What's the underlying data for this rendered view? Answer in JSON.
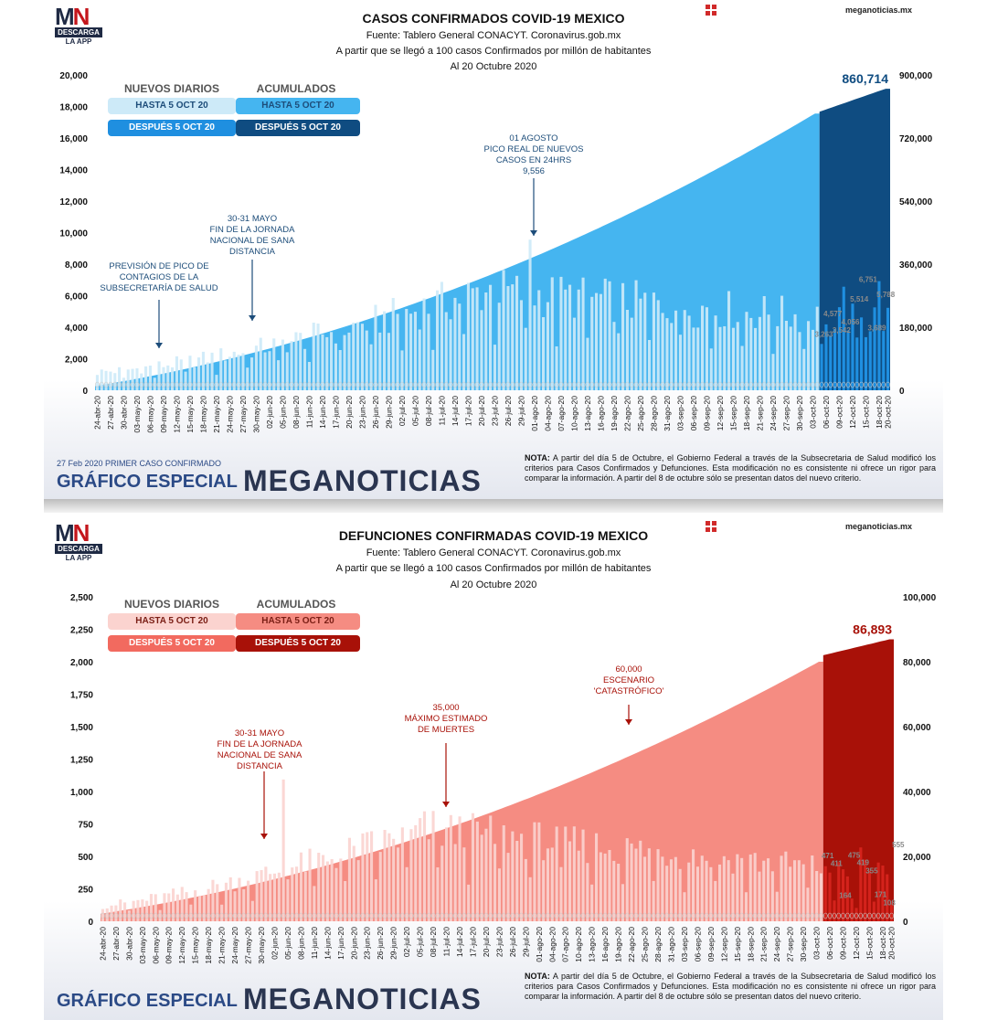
{
  "chart_data": [
    {
      "type": "bar",
      "title": "CASOS CONFIRMADOS COVID-19 MEXICO",
      "subtitle_lines": [
        "Fuente: Tablero General CONACYT. Coronavirus.gob.mx",
        "A partir que se llegó a 100 casos Confirmados por millón de habitantes",
        "Al 20 Octubre 2020"
      ],
      "x_start": "2020-04-24",
      "x_end": "2020-10-20",
      "x_tick_labels": [
        "24-abr-20",
        "27-abr-20",
        "30-abr-20",
        "03-may-20",
        "06-may-20",
        "09-may-20",
        "12-may-20",
        "15-may-20",
        "18-may-20",
        "21-may-20",
        "24-may-20",
        "27-may-20",
        "30-may-20",
        "02-jun-20",
        "05-jun-20",
        "08-jun-20",
        "11-jun-20",
        "14-jun-20",
        "17-jun-20",
        "20-jun-20",
        "23-jun-20",
        "26-jun-20",
        "29-jun-20",
        "02-jul-20",
        "05-jul-20",
        "08-jul-20",
        "11-jul-20",
        "14-jul-20",
        "17-jul-20",
        "20-jul-20",
        "23-jul-20",
        "26-jul-20",
        "29-jul-20",
        "01-ago-20",
        "04-ago-20",
        "07-ago-20",
        "10-ago-20",
        "13-ago-20",
        "16-ago-20",
        "19-ago-20",
        "22-ago-20",
        "25-ago-20",
        "28-ago-20",
        "31-ago-20",
        "03-sep-20",
        "06-sep-20",
        "09-sep-20",
        "12-sep-20",
        "15-sep-20",
        "18-sep-20",
        "21-sep-20",
        "24-sep-20",
        "27-sep-20",
        "30-sep-20",
        "03-oct-20",
        "06-oct-20",
        "09-oct-20",
        "12-oct-20",
        "15-oct-20",
        "18-oct-20",
        "20-oct-20"
      ],
      "y_left_ticks": [
        "20,000",
        "18,000",
        "16,000",
        "14,000",
        "12,000",
        "10,000",
        "8,000",
        "6,000",
        "4,000",
        "2,000",
        "0"
      ],
      "y_right_ticks": [
        "900,000",
        "720,000",
        "540,000",
        "360,000",
        "180,000",
        "0"
      ],
      "ylim_left": [
        0,
        20000
      ],
      "ylim_right": [
        0,
        900000
      ],
      "series": [
        {
          "name": "NUEVOS DIARIOS HASTA 5 OCT 20",
          "color": "#cdeaf8",
          "approx_range": [
            800,
            9556
          ]
        },
        {
          "name": "NUEVOS DIARIOS DESPUÉS 5 OCT 20",
          "color": "#1f8fe0",
          "values_labeled": [
            3263,
            4577,
            3542,
            4056,
            5514,
            6751,
            3689,
            5788
          ]
        },
        {
          "name": "ACUMULADOS HASTA 5 OCT 20",
          "color": "#45b5f0",
          "start": 12000,
          "end": 790000
        },
        {
          "name": "ACUMULADOS DESPUÉS 5 OCT 20",
          "color": "#0f4c81",
          "start": 795000,
          "end": 860714
        }
      ],
      "total_label": "860,714",
      "bar_labels": [
        "3,263",
        "4,577",
        "3,542",
        "4,056",
        "5,514",
        "6,751",
        "3,689",
        "5,788"
      ],
      "legend": {
        "left_header": "NUEVOS DIARIOS",
        "right_header": "ACUMULADOS",
        "before": "HASTA 5 OCT 20",
        "after": "DESPUÉS 5 OCT 20"
      },
      "annotations": {
        "prevision": [
          "PREVISIÓN DE PICO DE",
          "CONTAGIOS DE LA",
          "SUBSECRETARÍA DE SALUD"
        ],
        "jornada": [
          "30-31 MAYO",
          "FIN DE LA JORNADA",
          "NACIONAL DE SANA",
          "DISTANCIA"
        ],
        "agosto": [
          "01 AGOSTO",
          "PICO REAL DE NUEVOS",
          "CASOS EN 24HRS",
          "9,556"
        ]
      },
      "first_case": "27 Feb 2020 PRIMER CASO CONFIRMADO"
    },
    {
      "type": "bar",
      "title": "DEFUNCIONES CONFIRMADAS COVID-19 MEXICO",
      "subtitle_lines": [
        "Fuente: Tablero General CONACYT. Coronavirus.gob.mx",
        "A partir que se llegó a 100 casos Confirmados por millón de habitantes",
        "Al 20 Octubre 2020"
      ],
      "x_start": "2020-04-24",
      "x_end": "2020-10-20",
      "x_tick_labels": [
        "24-abr-20",
        "27-abr-20",
        "30-abr-20",
        "03-may-20",
        "06-may-20",
        "09-may-20",
        "12-may-20",
        "15-may-20",
        "18-may-20",
        "21-may-20",
        "24-may-20",
        "27-may-20",
        "30-may-20",
        "02-jun-20",
        "05-jun-20",
        "08-jun-20",
        "11-jun-20",
        "14-jun-20",
        "17-jun-20",
        "20-jun-20",
        "23-jun-20",
        "26-jun-20",
        "29-jun-20",
        "02-jul-20",
        "05-jul-20",
        "08-jul-20",
        "11-jul-20",
        "14-jul-20",
        "17-jul-20",
        "20-jul-20",
        "23-jul-20",
        "26-jul-20",
        "29-jul-20",
        "01-ago-20",
        "04-ago-20",
        "07-ago-20",
        "10-ago-20",
        "13-ago-20",
        "16-ago-20",
        "19-ago-20",
        "22-ago-20",
        "25-ago-20",
        "28-ago-20",
        "31-ago-20",
        "03-sep-20",
        "06-sep-20",
        "09-sep-20",
        "12-sep-20",
        "15-sep-20",
        "18-sep-20",
        "21-sep-20",
        "24-sep-20",
        "27-sep-20",
        "30-sep-20",
        "03-oct-20",
        "06-oct-20",
        "09-oct-20",
        "12-oct-20",
        "15-oct-20",
        "18-oct-20",
        "20-oct-20"
      ],
      "y_left_ticks": [
        "2,500",
        "2,250",
        "2,000",
        "1,750",
        "1,500",
        "1,250",
        "1,000",
        "750",
        "500",
        "250",
        "0"
      ],
      "y_right_ticks": [
        "100,000",
        "80,000",
        "60,000",
        "40,000",
        "20,000",
        "0"
      ],
      "ylim_left": [
        0,
        2500
      ],
      "ylim_right": [
        0,
        100000
      ],
      "series": [
        {
          "name": "NUEVOS DIARIOS HASTA 5 OCT 20",
          "color": "#fbd3cf",
          "approx_range": [
            100,
            1092
          ]
        },
        {
          "name": "NUEVOS DIARIOS DESPUÉS 5 OCT 20",
          "color": "#d4231c",
          "values_labeled": [
            471,
            411,
            164,
            475,
            419,
            355,
            171,
            108,
            555
          ]
        },
        {
          "name": "ACUMULADOS HASTA 5 OCT 20",
          "color": "#f58c82",
          "start": 2300,
          "end": 80000
        },
        {
          "name": "ACUMULADOS DESPUÉS 5 OCT 20",
          "color": "#a81108",
          "start": 82000,
          "end": 86893
        }
      ],
      "total_label": "86,893",
      "bar_labels": [
        "471",
        "411",
        "164",
        "475",
        "419",
        "355",
        "171",
        "108",
        "555"
      ],
      "legend": {
        "left_header": "NUEVOS DIARIOS",
        "right_header": "ACUMULADOS",
        "before": "HASTA 5 OCT 20",
        "after": "DESPUÉS 5 OCT 20"
      },
      "annotations": {
        "jornada": [
          "30-31 MAYO",
          "FIN DE LA JORNADA",
          "NACIONAL DE SANA",
          "DISTANCIA"
        ],
        "maximo": [
          "35,000",
          "MÁXIMO ESTIMADO",
          "DE MUERTES"
        ],
        "escenario": [
          "60,000",
          "ESCENARIO",
          "'CATASTRÓFICO'"
        ]
      }
    }
  ],
  "branding": {
    "logo_main": "MN",
    "logo_descarga": "DESCARGA",
    "logo_app": "LA APP",
    "site": "meganoticias.mx",
    "footer_label": "GRÁFICO ESPECIAL",
    "brand": "MEGANOTICIAS",
    "note_bold": "NOTA:",
    "note_text": " A partir del día 5 de Octubre, el Gobierno Federal a través de la Subsecretaria de Salud modificó los criterios para Casos Confirmados y Defunciones. Esta modificación no es consistente ni ofrece un rigor para comparar la información. A partir del 8 de octubre sólo se presentan datos del nuevo criterio."
  }
}
